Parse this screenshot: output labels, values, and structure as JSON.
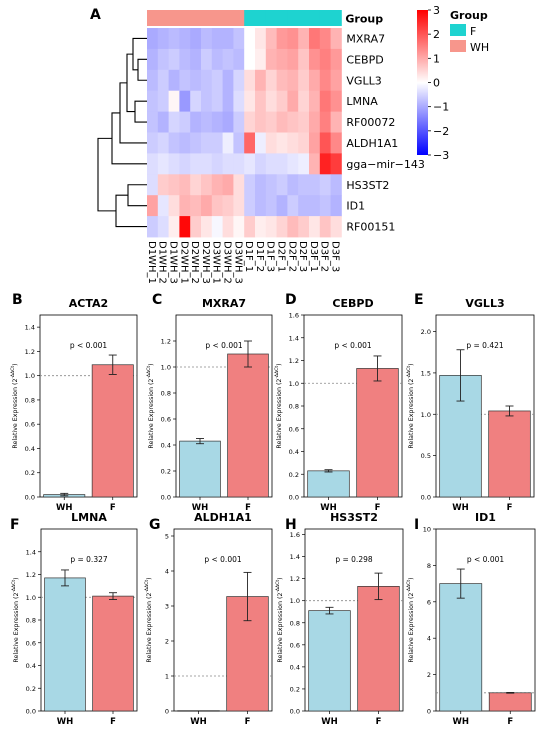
{
  "figure": {
    "panel_labels": [
      "A",
      "B",
      "C",
      "D",
      "E",
      "F",
      "G",
      "H",
      "I"
    ]
  },
  "chart_data": [
    {
      "type": "heatmap",
      "panel": "A",
      "columns": [
        "D1WH_1",
        "D1WH_2",
        "D1WH_3",
        "D2WH_1",
        "D2WH_2",
        "D2WH_3",
        "D3WH_1",
        "D3WH_2",
        "D3WH_3",
        "D1F_1",
        "D1F_2",
        "D1F_3",
        "D2F_1",
        "D2F_2",
        "D2F_3",
        "D3F_1",
        "D3F_2",
        "D3F_3"
      ],
      "column_groups": [
        "WH",
        "WH",
        "WH",
        "WH",
        "WH",
        "WH",
        "WH",
        "WH",
        "WH",
        "F",
        "F",
        "F",
        "F",
        "F",
        "F",
        "F",
        "F",
        "F"
      ],
      "rows": [
        "MXRA7",
        "CEBPD",
        "VGLL3",
        "LMNA",
        "RF00072",
        "ALDH1A1",
        "gga−mir−143",
        "HS3ST2",
        "ID1",
        "RF00151"
      ],
      "values": [
        [
          -1.0,
          -0.9,
          -0.8,
          -0.9,
          -1.0,
          -0.8,
          -0.9,
          -0.9,
          -0.7,
          0.0,
          0.3,
          0.8,
          1.2,
          1.3,
          0.9,
          1.6,
          1.4,
          0.9
        ],
        [
          -0.9,
          -0.7,
          -0.6,
          -0.8,
          -0.9,
          -0.6,
          -0.8,
          -0.7,
          -0.8,
          0.0,
          0.2,
          0.9,
          1.0,
          1.1,
          0.7,
          1.3,
          1.5,
          1.2
        ],
        [
          -0.8,
          -0.6,
          -0.9,
          -0.7,
          -0.8,
          -0.7,
          -0.6,
          -0.9,
          -0.5,
          0.4,
          0.9,
          0.5,
          0.8,
          0.9,
          0.6,
          1.0,
          1.4,
          1.1
        ],
        [
          -0.7,
          -0.6,
          0.1,
          -1.2,
          -0.5,
          -0.7,
          -0.6,
          -0.9,
          -0.4,
          0.3,
          0.7,
          0.4,
          0.6,
          1.0,
          0.5,
          0.9,
          1.6,
          1.3
        ],
        [
          -0.7,
          -0.9,
          -0.5,
          -0.6,
          -0.9,
          -0.8,
          -0.9,
          -1.0,
          -0.6,
          0.5,
          0.7,
          0.6,
          0.8,
          0.7,
          0.6,
          1.0,
          1.5,
          0.9
        ],
        [
          -0.6,
          -0.5,
          -0.7,
          -0.8,
          -0.7,
          -0.6,
          -0.6,
          -0.2,
          -0.7,
          1.8,
          -0.2,
          0.4,
          0.3,
          0.4,
          0.5,
          1.1,
          2.0,
          1.4
        ],
        [
          -0.4,
          -0.3,
          -0.4,
          -0.5,
          -0.4,
          -0.4,
          -0.5,
          -0.4,
          -0.4,
          -0.3,
          -0.5,
          -0.4,
          -0.4,
          -0.3,
          -0.2,
          0.9,
          2.6,
          2.3
        ],
        [
          -0.4,
          0.6,
          0.7,
          0.8,
          0.5,
          0.7,
          0.9,
          1.0,
          0.4,
          -0.6,
          -0.8,
          -0.7,
          -0.6,
          -0.8,
          -0.7,
          -0.7,
          -0.6,
          -0.8
        ],
        [
          1.1,
          -0.3,
          0.4,
          0.9,
          0.8,
          1.0,
          0.7,
          0.6,
          0.4,
          -0.6,
          -0.8,
          -0.7,
          -0.9,
          -0.6,
          -0.8,
          -0.8,
          -0.7,
          -0.9
        ],
        [
          -0.6,
          -0.4,
          0.2,
          2.9,
          0.6,
          0.3,
          -0.1,
          0.4,
          0.1,
          0.6,
          0.2,
          0.3,
          0.5,
          0.8,
          0.6,
          0.3,
          0.7,
          0.4
        ]
      ],
      "annotation_label": "Group",
      "legend_title": "Group",
      "legend_entries": [
        "F",
        "WH"
      ],
      "legend_colors": {
        "F": "#1ed3d0",
        "WH": "#f7968c"
      },
      "colorbar_ticks": [
        "3",
        "2",
        "1",
        "0",
        "−1",
        "−2",
        "−3"
      ],
      "colorbar_range": [
        -3,
        3
      ],
      "colormap": [
        "#0000ff",
        "#ffffff",
        "#ff0000"
      ]
    },
    {
      "type": "bar",
      "panel": "B",
      "title": "ACTA2",
      "categories": [
        "WH",
        "F"
      ],
      "values": [
        0.02,
        1.09
      ],
      "errors": [
        0.01,
        0.08
      ],
      "ylim": [
        0,
        1.5
      ],
      "yticks": [
        0.0,
        0.2,
        0.4,
        0.6,
        0.8,
        1.0,
        1.2,
        1.4
      ],
      "tick_labels": [
        "0.0",
        "0.2",
        "0.4",
        "0.6",
        "0.8",
        "1.0",
        "1.2",
        "1.4"
      ],
      "ylabel": "Relative Expression (2^-ΔΔCt)",
      "annotation": "p < 0.001",
      "reference_line": 1.0
    },
    {
      "type": "bar",
      "panel": "C",
      "title": "MXRA7",
      "categories": [
        "WH",
        "F"
      ],
      "values": [
        0.43,
        1.1
      ],
      "errors": [
        0.02,
        0.1
      ],
      "ylim": [
        0,
        1.4
      ],
      "yticks": [
        0.0,
        0.2,
        0.4,
        0.6,
        0.8,
        1.0,
        1.2
      ],
      "tick_labels": [
        "0.0",
        "0.2",
        "0.4",
        "0.6",
        "0.8",
        "1.0",
        "1.2"
      ],
      "ylabel": "Relative Expression (2^-ΔΔCt)",
      "annotation": "p < 0.001",
      "reference_line": 1.0
    },
    {
      "type": "bar",
      "panel": "D",
      "title": "CEBPD",
      "categories": [
        "WH",
        "F"
      ],
      "values": [
        0.23,
        1.13
      ],
      "errors": [
        0.01,
        0.11
      ],
      "ylim": [
        0,
        1.6
      ],
      "yticks": [
        0.0,
        0.2,
        0.4,
        0.6,
        0.8,
        1.0,
        1.2,
        1.4,
        1.6
      ],
      "tick_labels": [
        "0.0",
        "0.2",
        "0.4",
        "0.6",
        "0.8",
        "1.0",
        "1.2",
        "1.4",
        "1.6"
      ],
      "ylabel": "Relative Expression (2^-ΔΔCt)",
      "annotation": "p < 0.001",
      "reference_line": 1.0
    },
    {
      "type": "bar",
      "panel": "E",
      "title": "VGLL3",
      "categories": [
        "WH",
        "F"
      ],
      "values": [
        1.47,
        1.04
      ],
      "errors": [
        0.31,
        0.06
      ],
      "ylim": [
        0,
        2.2
      ],
      "yticks": [
        0.0,
        0.5,
        1.0,
        1.5,
        2.0
      ],
      "tick_labels": [
        "0.0",
        "0.5",
        "1.0",
        "1.5",
        "2.0"
      ],
      "ylabel": "Relative Expression (2^-ΔΔCt)",
      "annotation": "p = 0.421",
      "reference_line": 1.0
    },
    {
      "type": "bar",
      "panel": "F",
      "title": "LMNA",
      "categories": [
        "WH",
        "F"
      ],
      "values": [
        1.17,
        1.01
      ],
      "errors": [
        0.07,
        0.03
      ],
      "ylim": [
        0,
        1.6
      ],
      "yticks": [
        0.0,
        0.2,
        0.4,
        0.6,
        0.8,
        1.0,
        1.2,
        1.4
      ],
      "tick_labels": [
        "0.0",
        "0.2",
        "0.4",
        "0.6",
        "0.8",
        "1.0",
        "1.2",
        "1.4"
      ],
      "ylabel": "Relative Expression (2^-ΔΔCt)",
      "annotation": "p = 0.327",
      "reference_line": 1.0
    },
    {
      "type": "bar",
      "panel": "G",
      "title": "ALDH1A1",
      "categories": [
        "WH",
        "F"
      ],
      "values": [
        0.01,
        3.27
      ],
      "errors": [
        0.0,
        0.69
      ],
      "ylim": [
        0,
        5.2
      ],
      "yticks": [
        0,
        1,
        2,
        3,
        4,
        5
      ],
      "tick_labels": [
        "0",
        "1",
        "2",
        "3",
        "4",
        "5"
      ],
      "ylabel": "Relative Expression (2^-ΔΔCt)",
      "annotation": "p < 0.001",
      "reference_line": 1.0
    },
    {
      "type": "bar",
      "panel": "H",
      "title": "HS3ST2",
      "categories": [
        "WH",
        "F"
      ],
      "values": [
        0.91,
        1.13
      ],
      "errors": [
        0.03,
        0.12
      ],
      "ylim": [
        0,
        1.65
      ],
      "yticks": [
        0.0,
        0.2,
        0.4,
        0.6,
        0.8,
        1.0,
        1.2,
        1.4,
        1.6
      ],
      "tick_labels": [
        "0.0",
        "0.2",
        "0.4",
        "0.6",
        "0.8",
        "1.0",
        "1.2",
        "1.4",
        "1.6"
      ],
      "ylabel": "Relative Expression (2^-ΔΔCt)",
      "annotation": "p = 0.298",
      "reference_line": 1.0
    },
    {
      "type": "bar",
      "panel": "I",
      "title": "ID1",
      "categories": [
        "WH",
        "F"
      ],
      "values": [
        7.0,
        1.0
      ],
      "errors": [
        0.8,
        0.02
      ],
      "ylim": [
        0,
        10
      ],
      "yticks": [
        0,
        2,
        4,
        6,
        8,
        10
      ],
      "tick_labels": [
        "0",
        "2",
        "4",
        "6",
        "8",
        "10"
      ],
      "ylabel": "Relative Expression (2^-ΔΔCt)",
      "annotation": "p < 0.001",
      "reference_line": 1.0
    }
  ],
  "colors": {
    "WH": "#a8d8e5",
    "F": "#f08080",
    "bar_edge": "#333333",
    "reference_line": "#888888"
  }
}
